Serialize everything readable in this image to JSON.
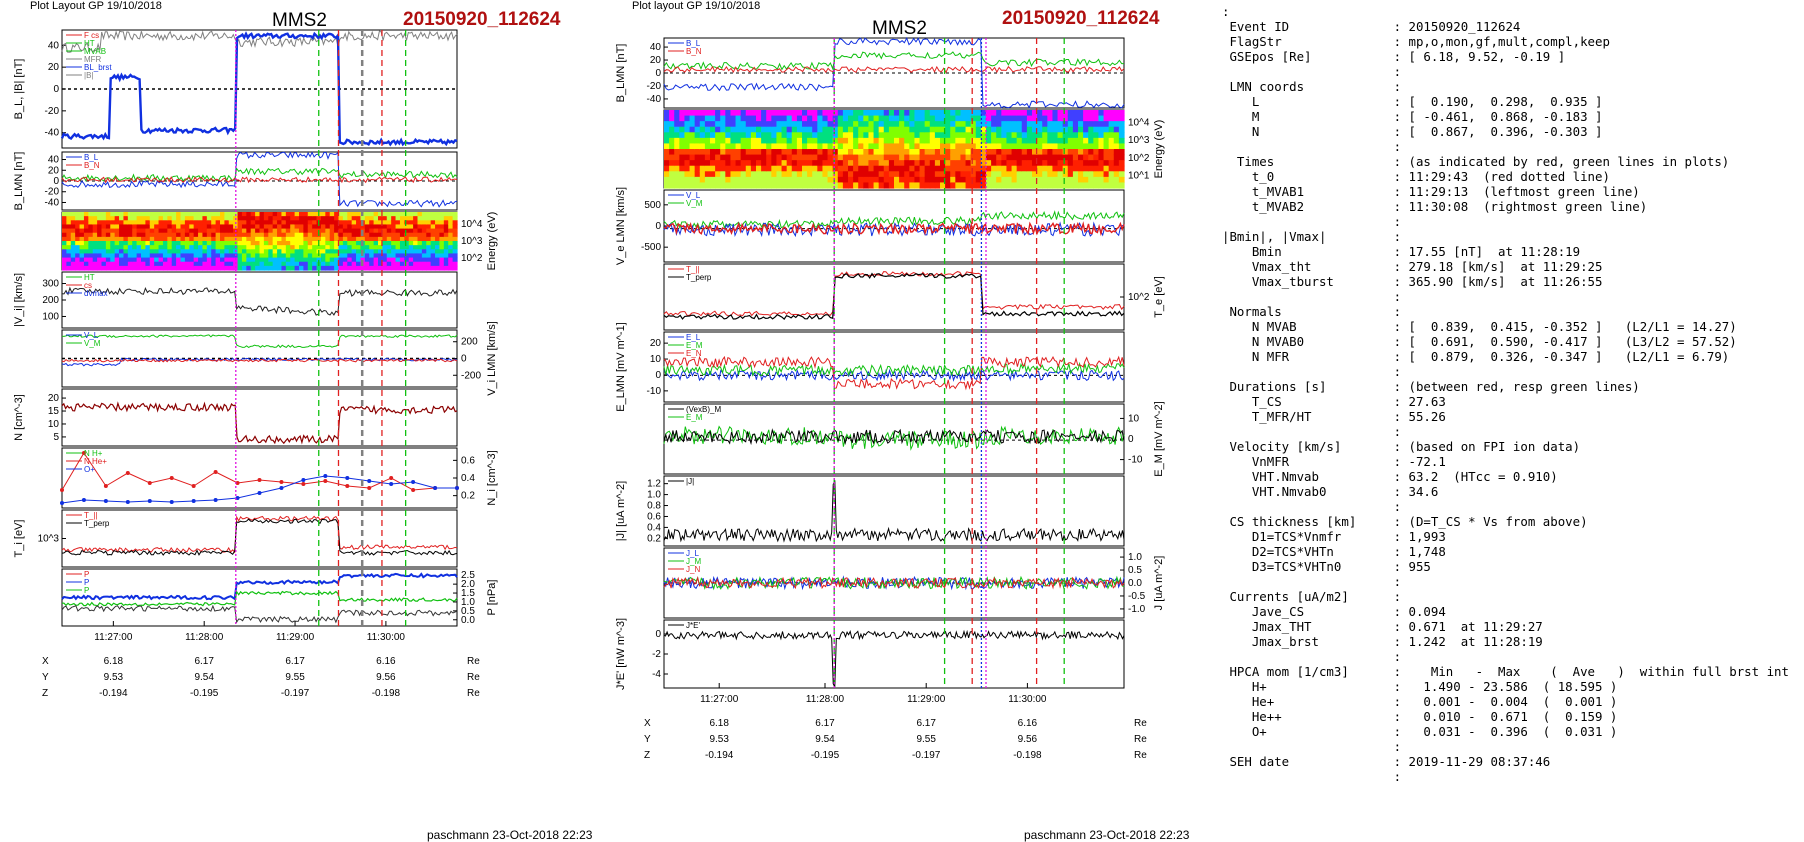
{
  "left_panel": {
    "header": "Plot Layout GP 19/10/2018",
    "spacecraft": "MMS2",
    "event": "20150920_112624",
    "footer": "paschmann 23-Oct-2018 22:23"
  },
  "mid_panel": {
    "header": "Plot layout GP 19/10/2018",
    "spacecraft": "MMS2",
    "event": "20150920_112624",
    "footer": "paschmann 23-Oct-2018 22:23"
  },
  "time_ticks": [
    "11:27:00",
    "11:28:00",
    "11:29:00",
    "11:30:00"
  ],
  "position_table": {
    "rows": [
      {
        "name": "X",
        "values": [
          "6.18",
          "6.17",
          "6.17",
          "6.16"
        ],
        "unit": "Re"
      },
      {
        "name": "Y",
        "values": [
          "9.53",
          "9.54",
          "9.55",
          "9.56"
        ],
        "unit": "Re"
      },
      {
        "name": "Z",
        "values": [
          "-0.194",
          "-0.195",
          "-0.197",
          "-0.198"
        ],
        "unit": "Re"
      }
    ]
  },
  "colors": {
    "red": "#e02020",
    "green": "#10c010",
    "blue": "#1030e0",
    "magenta": "#e010e0",
    "gray": "#808080",
    "title_red": "#b01010"
  },
  "chart_data": [
    {
      "type": "line",
      "title": "MMS2 20150920_112624 (left stack)",
      "panels": [
        {
          "ylabel": "B_L, |B| [nT]",
          "ylim": [
            -50,
            50
          ],
          "ticks": [
            "40",
            "20",
            "0",
            "-20",
            "-40"
          ],
          "legend": [
            "F cs",
            "HT",
            "MVAB",
            "MVAB0",
            "MFR",
            "BL_90%dBL",
            "BL_brst",
            "|B|"
          ]
        },
        {
          "ylabel": "B_LMN [nT]",
          "ylim": [
            -45,
            45
          ],
          "ticks": [
            "40",
            "20",
            "0",
            "-20",
            "-40"
          ],
          "legend": [
            "B_L",
            "B_N"
          ]
        },
        {
          "ylabel": "Energy (eV)",
          "type": "heatmap",
          "ticks": [
            "10^4",
            "10^3",
            "10^2"
          ]
        },
        {
          "ylabel": "|V_i| [km/s]",
          "ylim": [
            50,
            400
          ],
          "ticks": [
            "300",
            "200",
            "100"
          ],
          "legend": [
            "HT",
            "vnmax",
            "cs",
            "dvmax"
          ]
        },
        {
          "ylabel": "V_i LMN [km/s]",
          "ylim": [
            -250,
            250
          ],
          "ticks": [
            "200",
            "0",
            "-200"
          ],
          "legend": [
            "V_L",
            "V_M",
            "V_N"
          ]
        },
        {
          "ylabel": "N [cm^-3]",
          "ylim": [
            0,
            22
          ],
          "ticks": [
            "20",
            "15",
            "10",
            "5"
          ]
        },
        {
          "ylabel": "N_i [cm^-3]",
          "ylim": [
            0,
            0.6
          ],
          "ticks": [
            "0.6",
            "0.4",
            "0.2"
          ],
          "legend": [
            "N H+",
            "N He+",
            "O+"
          ]
        },
        {
          "ylabel": "T_i [eV]",
          "ticks": [
            "10^3"
          ],
          "legend": [
            "T_||",
            "T_perp"
          ]
        },
        {
          "ylabel": "P [nPa]",
          "ylim": [
            0,
            2.5
          ],
          "ticks": [
            "2.5",
            "2.0",
            "1.5",
            "1.0",
            "0.5",
            "0.0"
          ],
          "legend": [
            "P",
            "P",
            "P"
          ]
        }
      ]
    },
    {
      "type": "line",
      "title": "MMS2 20150920_112624 (middle stack)",
      "panels": [
        {
          "ylabel": "B_LMN [nT]",
          "ylim": [
            -50,
            50
          ],
          "ticks": [
            "40",
            "20",
            "0",
            "-20",
            "-40"
          ],
          "legend": [
            "B_L",
            "B_N"
          ]
        },
        {
          "ylabel": "Energy (eV)",
          "type": "heatmap",
          "ticks": [
            "10^4",
            "10^3",
            "10^2",
            "10^1"
          ]
        },
        {
          "ylabel": "V_e LMN [km/s]",
          "ylim": [
            -600,
            700
          ],
          "ticks": [
            "500",
            "0",
            "-500"
          ],
          "legend": [
            "V_L",
            "V_M"
          ]
        },
        {
          "ylabel": "T_e [eV]",
          "ticks": [
            "10^2"
          ],
          "legend": [
            "T_||",
            "T_perp"
          ]
        },
        {
          "ylabel": "E_LMN [mV m^-1]",
          "ylim": [
            -15,
            25
          ],
          "ticks": [
            "20",
            "10",
            "0",
            "-10"
          ],
          "legend": [
            "E_L",
            "E_M",
            "E_N"
          ]
        },
        {
          "ylabel": "E_M [mV m^-2]",
          "ylim": [
            -15,
            15
          ],
          "ticks": [
            "10",
            "0",
            "-10"
          ],
          "legend": [
            "(VexB)_M",
            "E_M"
          ]
        },
        {
          "ylabel": "|J| [uA m^-2]",
          "ylim": [
            0,
            1.2
          ],
          "ticks": [
            "1.2",
            "1.0",
            "0.8",
            "0.6",
            "0.4",
            "0.2"
          ],
          "legend": [
            "|J|"
          ]
        },
        {
          "ylabel": "J [uA m^-2]",
          "ylim": [
            -1.2,
            1.2
          ],
          "ticks": [
            "1.0",
            "0.5",
            "0.0",
            "-0.5",
            "-1.0"
          ],
          "legend": [
            "J_L",
            "J_M",
            "J_N"
          ]
        },
        {
          "ylabel": "J*E' [nW m^-3]",
          "ylim": [
            -4,
            1
          ],
          "ticks": [
            "0",
            "-2",
            "-4"
          ],
          "legend": [
            "J*E'"
          ]
        }
      ]
    }
  ],
  "summary": {
    "lines": [
      ":",
      " Event ID              : 20150920_112624",
      " FlagStr               : mp,o,mon,gf,mult,compl,keep",
      " GSEpos [Re]           : [ 6.18, 9.52, -0.19 ]",
      "                       :",
      " LMN coords            :",
      "    L                  : [  0.190,  0.298,  0.935 ]",
      "    M                  : [ -0.461,  0.868, -0.183 ]",
      "    N                  : [  0.867,  0.396, -0.303 ]",
      "                       :",
      "  Times                : (as indicated by red, green lines in plots)",
      "    t_0                : 11:29:43  (red dotted line)",
      "    t_MVAB1            : 11:29:13  (leftmost green line)",
      "    t_MVAB2            : 11:30:08  (rightmost green line)",
      "                       :",
      "|Bmin|, |Vmax|         :",
      "    Bmin               : 17.55 [nT]  at 11:28:19",
      "    Vmax_tht           : 279.18 [km/s]  at 11:29:25",
      "    Vmax_tburst        : 365.90 [km/s]  at 11:26:55",
      "                       :",
      " Normals               :",
      "    N MVAB             : [  0.839,  0.415, -0.352 ]   (L2/L1 = 14.27)",
      "    N MVAB0            : [  0.691,  0.590, -0.417 ]   (L3/L2 = 57.52)",
      "    N MFR              : [  0.879,  0.326, -0.347 ]   (L2/L1 = 6.79)",
      "                       :",
      " Durations [s]         : (between red, resp green lines)",
      "    T_CS               : 27.63",
      "    T_MFR/HT           : 55.26",
      "                       :",
      " Velocity [km/s]       : (based on FPI ion data)",
      "    VnMFR              : -72.1",
      "    VHT.Nmvab          : 63.2  (HTcc = 0.910)",
      "    VHT.Nmvab0         : 34.6",
      "                       :",
      " CS thickness [km]     : (D=T_CS * Vs from above)",
      "    D1=TCS*Vnmfr       : 1,993",
      "    D2=TCS*VHTn        : 1,748",
      "    D3=TCS*VHTn0       : 955",
      "                       :",
      " Currents [uA/m2]      :",
      "    Jave_CS            : 0.094",
      "    Jmax_THT           : 0.671  at 11:29:27",
      "    Jmax_brst          : 1.242  at 11:28:19",
      "                       :",
      " HPCA mom [1/cm3]      :    Min   -  Max    (  Ave   )  within full brst int",
      "    H+                 :   1.490 - 23.586  ( 18.595 )",
      "    He+                :   0.001 -  0.004  (  0.001 )",
      "    He++               :   0.010 -  0.671  (  0.159 )",
      "    O+                 :   0.031 -  0.396  (  0.031 )",
      "                       :",
      " SEH date              : 2019-11-29 08:37:46",
      "                       :"
    ]
  }
}
